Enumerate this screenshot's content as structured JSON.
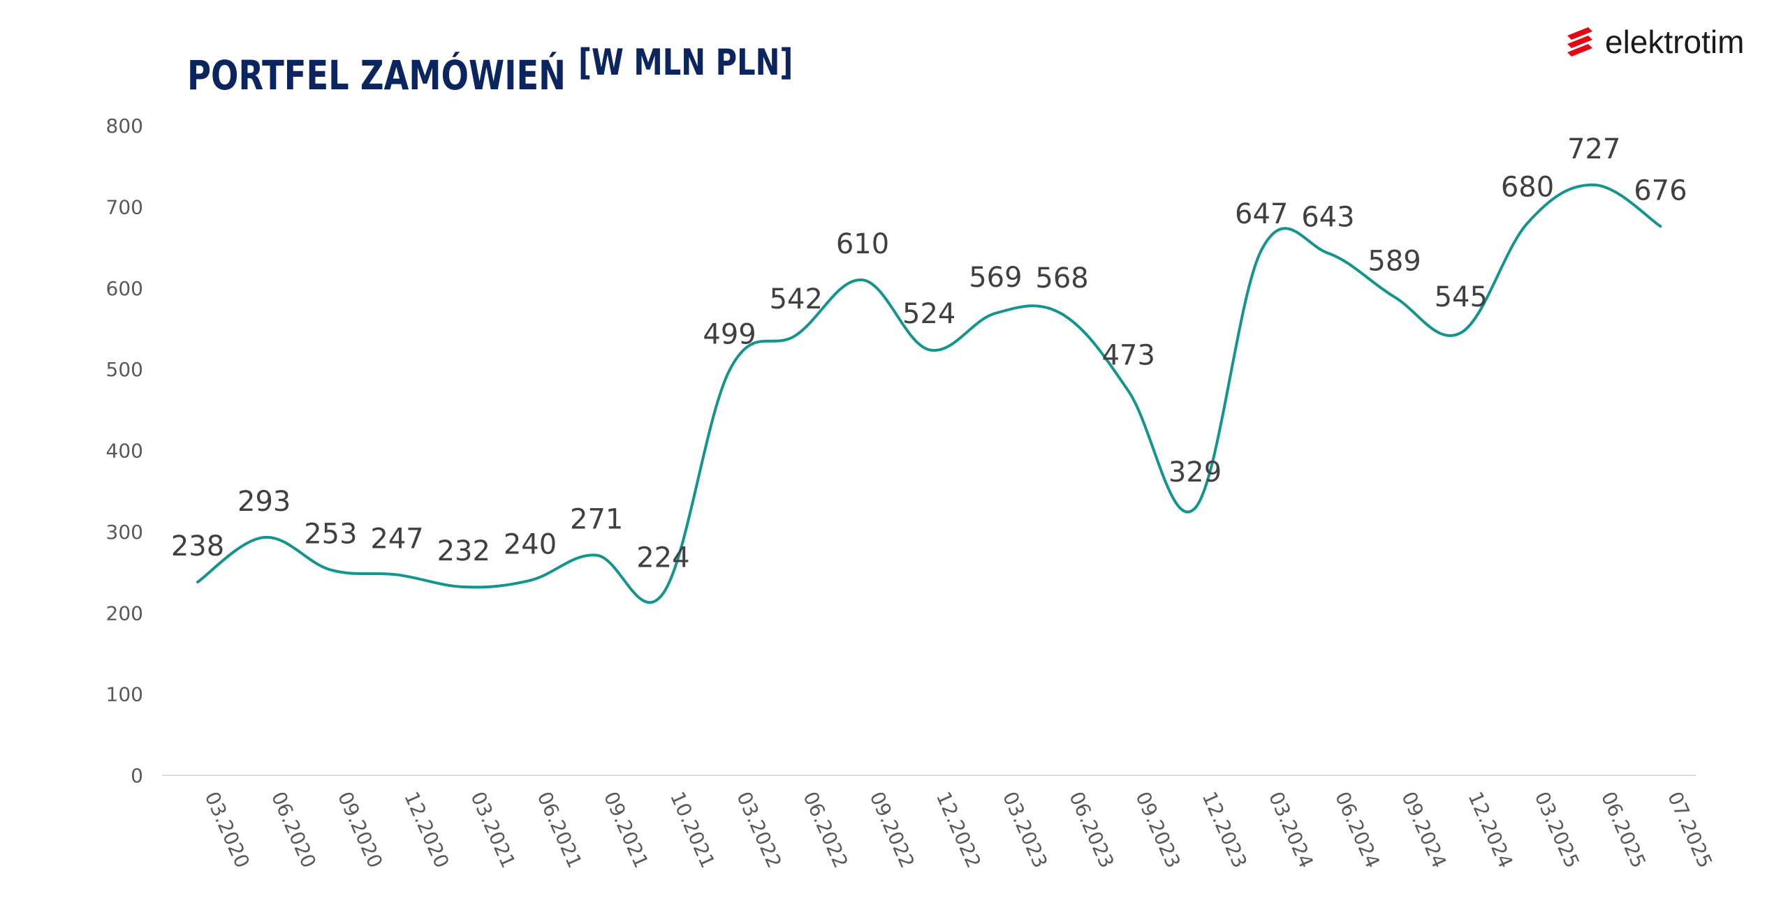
{
  "header": {
    "title": "PORTFEL ZAMÓWIEŃ",
    "unit": "[W MLN PLN]"
  },
  "logo": {
    "text": "elektrotim",
    "icon": "elektrotim-stripes-icon",
    "color": "#e30613"
  },
  "chart_data": {
    "type": "line",
    "title": "PORTFEL ZAMÓWIEŃ",
    "categories": [
      "03.2020",
      "06.2020",
      "09.2020",
      "12.2020",
      "03.2021",
      "06.2021",
      "09.2021",
      "10.2021",
      "03.2022",
      "06.2022",
      "09.2022",
      "12.2022",
      "03.2023",
      "06.2023",
      "09.2023",
      "12.2023",
      "03.2024",
      "06.2024",
      "09.2024",
      "12.2024",
      "03.2025",
      "06.2025",
      "07.2025"
    ],
    "series": [
      {
        "values": [
          238,
          293,
          253,
          247,
          232,
          240,
          271,
          224,
          499,
          542,
          610,
          524,
          569,
          568,
          473,
          329,
          647,
          643,
          589,
          545,
          680,
          727,
          676
        ],
        "color": "#14948f"
      }
    ],
    "y_ticks": [
      "0",
      "100",
      "200",
      "300",
      "400",
      "500",
      "600",
      "700",
      "800"
    ],
    "ylim": [
      0,
      800
    ],
    "grid": false,
    "legend": "none",
    "smooth": true
  }
}
